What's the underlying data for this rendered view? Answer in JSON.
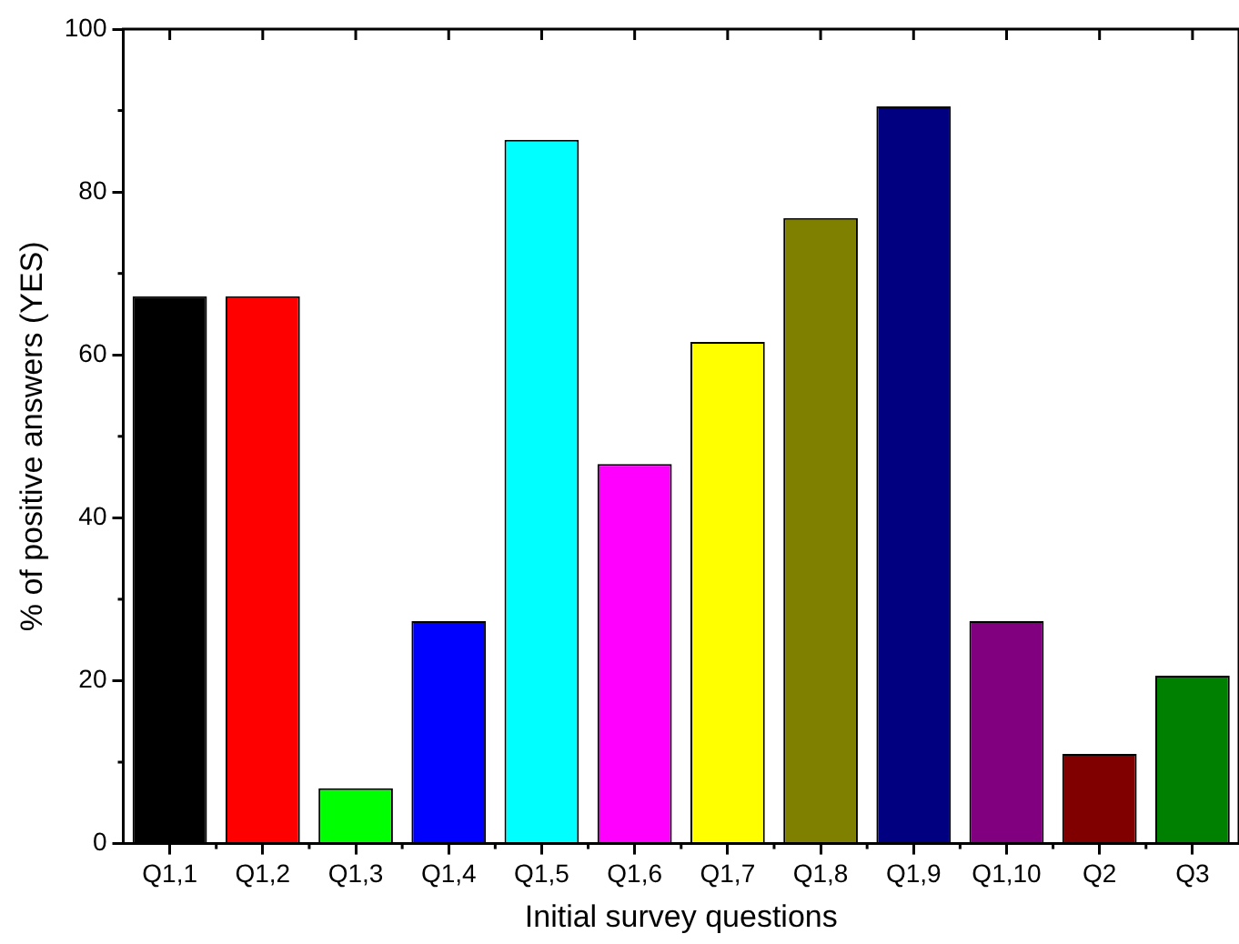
{
  "chart_data": {
    "type": "bar",
    "xlabel": "Initial survey questions",
    "ylabel": "% of positive answers (YES)",
    "categories": [
      "Q1,1",
      "Q1,2",
      "Q1,3",
      "Q1,4",
      "Q1,5",
      "Q1,6",
      "Q1,7",
      "Q1,8",
      "Q1,9",
      "Q1,10",
      "Q2",
      "Q3"
    ],
    "values": [
      67.2,
      67.2,
      6.8,
      27.3,
      86.4,
      46.6,
      61.6,
      76.8,
      90.5,
      27.3,
      11.0,
      20.6
    ],
    "colors": [
      "#000000",
      "#ff0000",
      "#00ff00",
      "#0000ff",
      "#00ffff",
      "#ff00ff",
      "#ffff00",
      "#808000",
      "#000080",
      "#800080",
      "#800000",
      "#008000"
    ],
    "ylim": [
      0,
      100
    ],
    "yticks": [
      0,
      20,
      40,
      60,
      80,
      100
    ],
    "grid": false,
    "legend": false
  }
}
